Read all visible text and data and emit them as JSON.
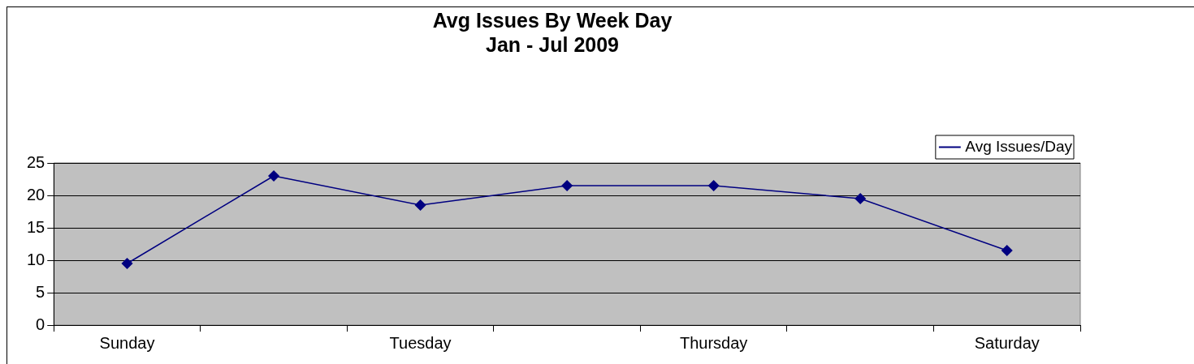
{
  "chart_data": {
    "type": "line",
    "title": "Avg Issues By Week Day",
    "subtitle": "Jan - Jul 2009",
    "categories": [
      "Sunday",
      null,
      "Tuesday",
      null,
      "Thursday",
      null,
      "Saturday"
    ],
    "series": [
      {
        "name": "Avg Issues/Day",
        "color": "#000080",
        "values": [
          9.5,
          23,
          18.5,
          21.5,
          21.5,
          19.5,
          11.5
        ]
      }
    ],
    "ylim": [
      0,
      25
    ],
    "yticks": [
      0,
      5,
      10,
      15,
      20,
      25
    ],
    "grid": "y",
    "legend": "top right",
    "marker": "diamond",
    "line_style": "solid"
  }
}
